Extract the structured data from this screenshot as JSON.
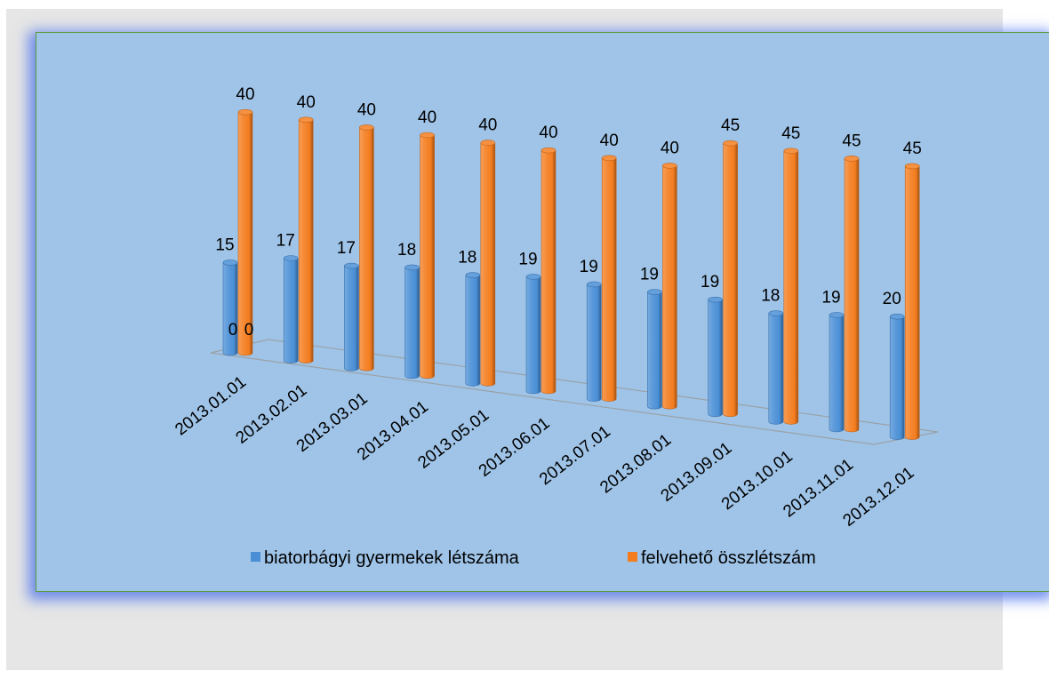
{
  "chart_data": {
    "type": "bar",
    "style": "3d-cylinder",
    "title": "",
    "xlabel": "",
    "ylabel": "",
    "categories": [
      "2013.01.01",
      "2013.02.01",
      "2013.03.01",
      "2013.04.01",
      "2013.05.01",
      "2013.06.01",
      "2013.07.01",
      "2013.08.01",
      "2013.09.01",
      "2013.10.01",
      "2013.11.01",
      "2013.12.01"
    ],
    "series": [
      {
        "name": "biatorbágyi gyermekek létszáma",
        "color": "#4a8fd6",
        "values": [
          15,
          17,
          17,
          18,
          18,
          19,
          19,
          19,
          19,
          18,
          19,
          20
        ]
      },
      {
        "name": "felvehető összlétszám",
        "color": "#f47d1f",
        "values": [
          40,
          40,
          40,
          40,
          40,
          40,
          40,
          40,
          45,
          45,
          45,
          45
        ]
      }
    ],
    "floor_labels": [
      "0",
      "0"
    ],
    "legend_position": "bottom",
    "grid": false
  }
}
